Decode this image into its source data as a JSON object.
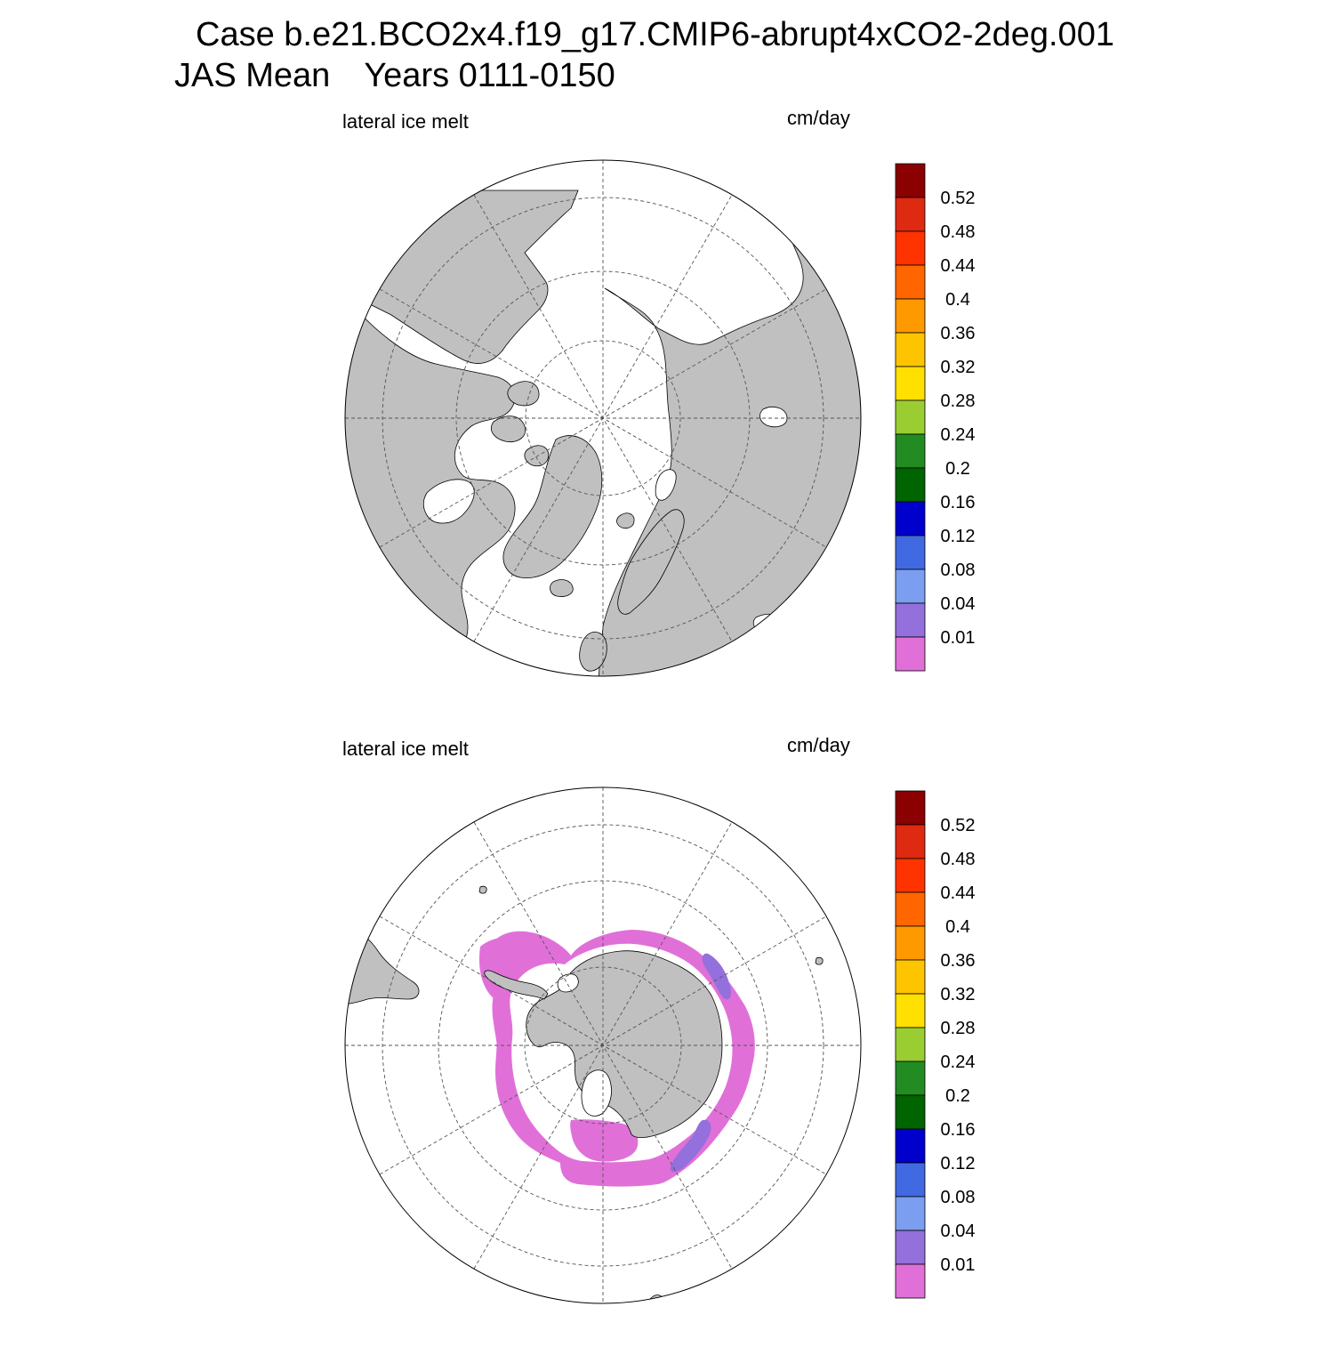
{
  "title": {
    "line1": "Case b.e21.BCO2x4.f19_g17.CMIP6-abrupt4xCO2-2deg.001",
    "season": "JAS Mean",
    "years": "Years 0111-0150"
  },
  "panels": [
    {
      "id": "north",
      "variable": "lateral ice melt",
      "units": "cm/day"
    },
    {
      "id": "south",
      "variable": "lateral ice melt",
      "units": "cm/day"
    }
  ],
  "colorbar": {
    "labels": [
      "0.01",
      "0.04",
      "0.08",
      "0.12",
      "0.16",
      "0.2",
      "0.24",
      "0.28",
      "0.32",
      "0.36",
      "0.4",
      "0.44",
      "0.48",
      "0.52"
    ],
    "colors": [
      "#e070d8",
      "#9370db",
      "#7b9ef0",
      "#4169e1",
      "#0000cd",
      "#006400",
      "#228b22",
      "#9acd32",
      "#ffe000",
      "#ffc400",
      "#ff9900",
      "#ff6600",
      "#ff3300",
      "#dd2a10",
      "#8b0000"
    ]
  },
  "colors": {
    "land": "#c0c0c0",
    "ocean": "#ffffff",
    "melt_low": "#e070d8",
    "melt_mid": "#9370db"
  }
}
